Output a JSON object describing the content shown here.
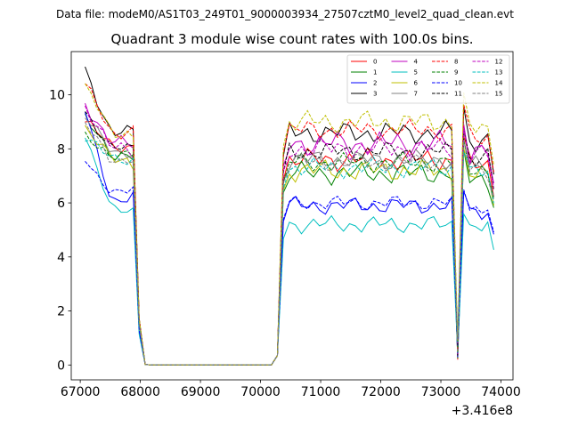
{
  "header_text": "Data file: modeM0/AS1T03_249T01_9000003934_27507cztM0_level2_quad_clean.evt",
  "chart_data": {
    "type": "line",
    "title": "Quadrant 3 module wise count rates with 100.0s bins.",
    "xlabel": "",
    "ylabel": "",
    "x_offset_label": "+3.416e8",
    "xlim": [
      66850,
      74200
    ],
    "ylim": [
      -0.55,
      11.6
    ],
    "x_ticks": [
      67000,
      68000,
      69000,
      70000,
      71000,
      72000,
      73000,
      74000
    ],
    "x_tick_labels": [
      "67000",
      "68000",
      "69000",
      "70000",
      "71000",
      "72000",
      "73000",
      "74000"
    ],
    "y_ticks": [
      0,
      2,
      4,
      6,
      8,
      10
    ],
    "y_tick_labels": [
      "0",
      "2",
      "4",
      "6",
      "8",
      "10"
    ],
    "grid": false,
    "legend_position": "top-right",
    "series": [
      {
        "name": "0",
        "color": "#ff0000",
        "dash": "solid",
        "base": 8.1,
        "hb": 7.6,
        "amp": 0.45,
        "first": 9.0
      },
      {
        "name": "1",
        "color": "#008000",
        "dash": "solid",
        "base": 7.8,
        "hb": 7.1,
        "amp": 0.45,
        "first": 9.1
      },
      {
        "name": "2",
        "color": "#0000ff",
        "dash": "solid",
        "base": 6.1,
        "hb": 5.9,
        "amp": 0.35,
        "first": 9.4
      },
      {
        "name": "3",
        "color": "#000000",
        "dash": "solid",
        "base": 8.6,
        "hb": 8.6,
        "amp": 0.45,
        "first": 10.9
      },
      {
        "name": "4",
        "color": "#bf00bf",
        "dash": "solid",
        "base": 8.2,
        "hb": 8.2,
        "amp": 0.5,
        "first": 9.7
      },
      {
        "name": "5",
        "color": "#00bfbf",
        "dash": "solid",
        "base": 5.7,
        "hb": 5.2,
        "amp": 0.35,
        "first": 8.6
      },
      {
        "name": "6",
        "color": "#bfbf00",
        "dash": "solid",
        "base": 7.6,
        "hb": 7.2,
        "amp": 0.45,
        "first": 8.8
      },
      {
        "name": "7",
        "color": "#808080",
        "dash": "solid",
        "base": 7.9,
        "hb": 7.6,
        "amp": 0.4,
        "first": 9.2
      },
      {
        "name": "8",
        "color": "#ff0000",
        "dash": "dashed",
        "base": 8.6,
        "hb": 8.7,
        "amp": 0.4,
        "first": 10.4
      },
      {
        "name": "9",
        "color": "#008000",
        "dash": "dashed",
        "base": 7.8,
        "hb": 7.5,
        "amp": 0.4,
        "first": 8.4
      },
      {
        "name": "10",
        "color": "#0000ff",
        "dash": "dashed",
        "base": 6.4,
        "hb": 6.0,
        "amp": 0.3,
        "first": 7.6
      },
      {
        "name": "11",
        "color": "#000000",
        "dash": "dashed",
        "base": 8.0,
        "hb": 7.9,
        "amp": 0.4,
        "first": 9.4
      },
      {
        "name": "12",
        "color": "#bf00bf",
        "dash": "dashed",
        "base": 8.0,
        "hb": 8.0,
        "amp": 0.45,
        "first": 9.6
      },
      {
        "name": "13",
        "color": "#00bfbf",
        "dash": "dashed",
        "base": 7.6,
        "hb": 7.3,
        "amp": 0.4,
        "first": 8.5
      },
      {
        "name": "14",
        "color": "#bfbf00",
        "dash": "dashed",
        "base": 8.6,
        "hb": 9.0,
        "amp": 0.45,
        "first": 10.3
      },
      {
        "name": "15",
        "color": "#808080",
        "dash": "dashed",
        "base": 7.6,
        "hb": 7.5,
        "amp": 0.4,
        "first": 8.9
      }
    ]
  }
}
